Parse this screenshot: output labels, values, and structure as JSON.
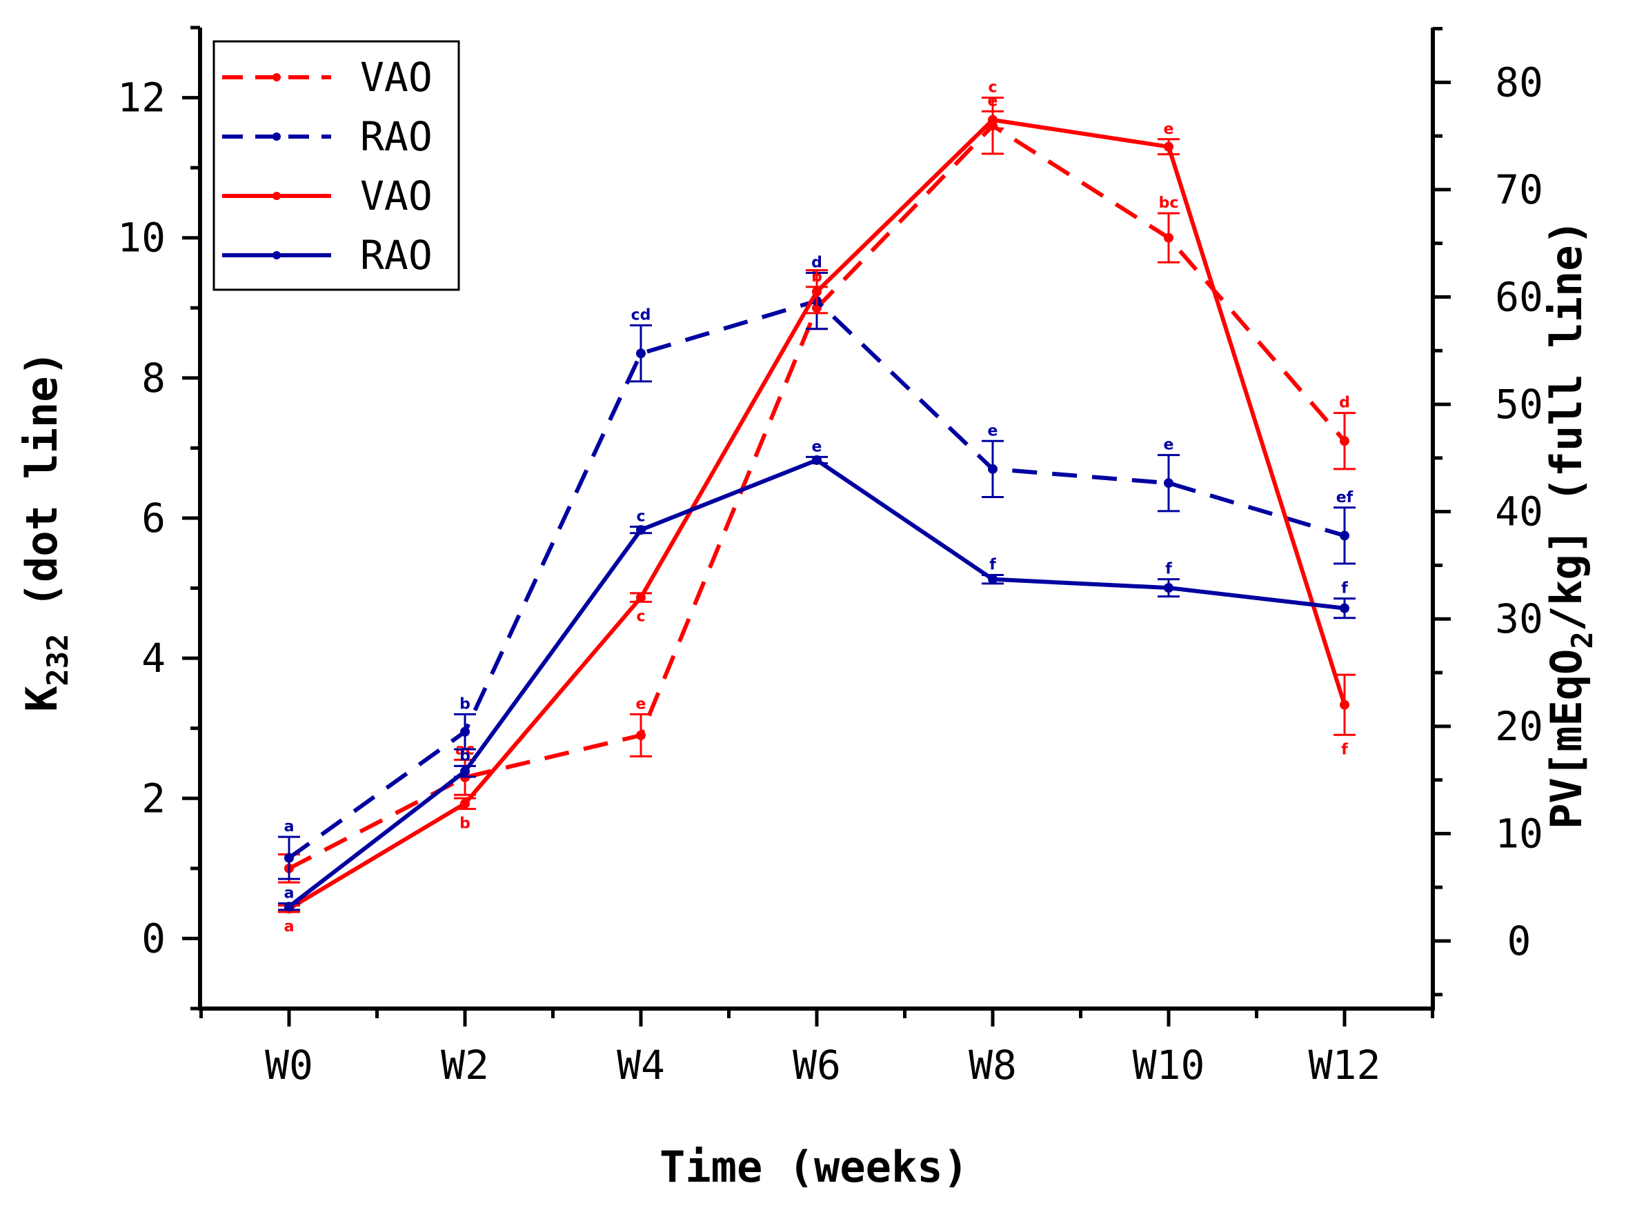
{
  "chart_data": {
    "type": "line",
    "title": "",
    "xlabel": "Time (weeks)",
    "ylabel_left": {
      "main": "K",
      "sub": "232",
      "suffix": " (dot line)"
    },
    "ylabel_right": {
      "prefix": "PV[mEqO",
      "sub": "2",
      "suffix": "/kg] (full line)"
    },
    "categories": [
      "W0",
      "W2",
      "W4",
      "W6",
      "W8",
      "W10",
      "W12"
    ],
    "y_left": {
      "range": [
        -1,
        13
      ],
      "ticks": [
        0,
        2,
        4,
        6,
        8,
        10,
        12
      ],
      "tick_labels": [
        "0",
        "2",
        "4",
        "6",
        "8",
        "10",
        "12"
      ]
    },
    "y_right": {
      "range": [
        -6.3,
        85.1
      ],
      "ticks": [
        0,
        10,
        20,
        30,
        40,
        50,
        60,
        70,
        80
      ],
      "tick_labels": [
        "0",
        "10",
        "20",
        "30",
        "40",
        "50",
        "60",
        "70",
        "80"
      ]
    },
    "legend_position": "top-left",
    "colors": {
      "VAO": "#ff0000",
      "RAO": "#0000a0"
    },
    "series": [
      {
        "name": "VAO",
        "axis": "left",
        "style": "dashed",
        "color": "#ff0000",
        "values": [
          1.0,
          2.3,
          2.9,
          9.0,
          11.6,
          10.0,
          7.1
        ],
        "errors": [
          0.2,
          0.25,
          0.3,
          0.3,
          0.4,
          0.35,
          0.4
        ],
        "annotations": [
          "",
          "ac",
          "e",
          "b",
          "c",
          "bc",
          "d"
        ]
      },
      {
        "name": "RAO",
        "axis": "left",
        "style": "dashed",
        "color": "#0000a0",
        "values": [
          1.15,
          2.95,
          8.35,
          9.1,
          6.7,
          6.5,
          5.75
        ],
        "errors": [
          0.3,
          0.25,
          0.4,
          0.4,
          0.4,
          0.4,
          0.4
        ],
        "annotations": [
          "a",
          "b",
          "cd",
          "d",
          "e",
          "e",
          "ef"
        ]
      },
      {
        "name": "VAO",
        "axis": "right",
        "style": "solid",
        "color": "#ff0000",
        "values": [
          3.0,
          12.8,
          32.0,
          60.5,
          76.5,
          74.0,
          22.0
        ],
        "errors": [
          0.3,
          0.5,
          0.4,
          2.0,
          0.8,
          0.7,
          2.8
        ],
        "annotations": [
          "a",
          "b",
          "c",
          "",
          "e",
          "e",
          "f"
        ]
      },
      {
        "name": "RAO",
        "axis": "right",
        "style": "solid",
        "color": "#0000a0",
        "values": [
          3.2,
          15.8,
          38.3,
          44.8,
          33.7,
          32.9,
          31.0
        ],
        "errors": [
          0.3,
          0.5,
          0.3,
          0.3,
          0.4,
          0.8,
          0.9
        ],
        "annotations": [
          "a",
          "b",
          "c",
          "e",
          "f",
          "f",
          "f"
        ]
      }
    ]
  }
}
